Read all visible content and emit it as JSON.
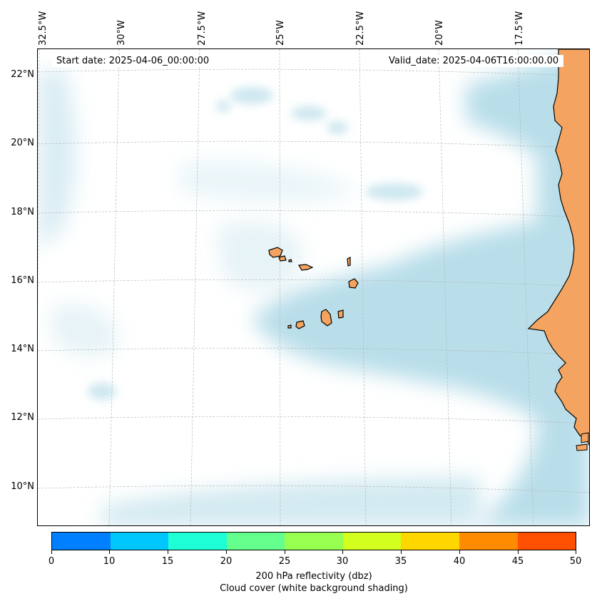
{
  "map": {
    "start_date": "Start date: 2025-04-06_00:00:00",
    "valid_date": "Valid_date: 2025-04-06T16:00:00.00",
    "lon_labels": [
      "32.5°W",
      "30°W",
      "27.5°W",
      "25°W",
      "22.5°W",
      "20°W",
      "17.5°W"
    ],
    "lat_labels": [
      "22°N",
      "20°N",
      "18°N",
      "16°N",
      "14°N",
      "12°N",
      "10°N"
    ],
    "colors": {
      "cloud": "#add8e6",
      "land": "#f4a460",
      "coastline": "#000000",
      "gridline": "#b0b0b0"
    }
  },
  "colorbar": {
    "ticks": [
      "0",
      "10",
      "15",
      "20",
      "25",
      "30",
      "35",
      "40",
      "45",
      "50"
    ],
    "colors": [
      "#0080ff",
      "#00c8ff",
      "#1effd6",
      "#64ff8c",
      "#96ff50",
      "#d2ff1e",
      "#ffd700",
      "#ff8c00",
      "#ff4f00"
    ],
    "label_line1": "200 hPa reflectivity (dbz)",
    "label_line2": "Cloud cover (white background shading)"
  }
}
